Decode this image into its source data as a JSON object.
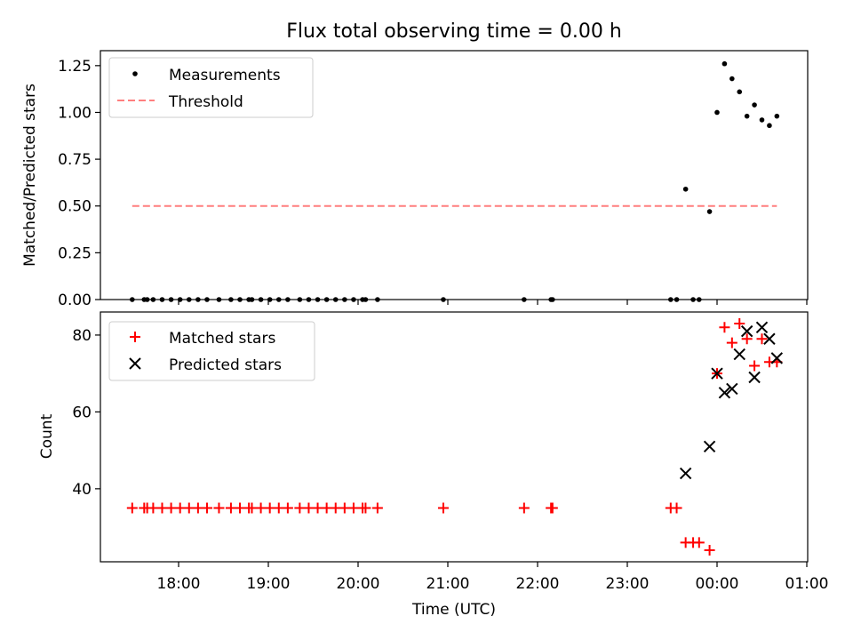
{
  "chart_data": [
    {
      "type": "scatter",
      "title": "Flux total observing time = 0.00 h",
      "xlabel": "",
      "ylabel": "Matched/Predicted stars",
      "ylim": [
        0,
        1.33
      ],
      "yticks": [
        0.0,
        0.25,
        0.5,
        0.75,
        1.0,
        1.25
      ],
      "ytick_labels": [
        "0.00",
        "0.25",
        "0.50",
        "0.75",
        "1.00",
        "1.25"
      ],
      "legend": [
        "Measurements",
        "Threshold"
      ],
      "legend_position": "top-left",
      "threshold": {
        "value": 0.5,
        "x_from": "17:29",
        "x_to": "00:40",
        "color": "#ff7f7f"
      },
      "measurements": [
        {
          "x": "17:29",
          "y": 0.0
        },
        {
          "x": "17:37",
          "y": 0.0
        },
        {
          "x": "17:39",
          "y": 0.0
        },
        {
          "x": "17:43",
          "y": 0.0
        },
        {
          "x": "17:49",
          "y": 0.0
        },
        {
          "x": "17:55",
          "y": 0.0
        },
        {
          "x": "18:01",
          "y": 0.0
        },
        {
          "x": "18:07",
          "y": 0.0
        },
        {
          "x": "18:13",
          "y": 0.0
        },
        {
          "x": "18:19",
          "y": 0.0
        },
        {
          "x": "18:27",
          "y": 0.0
        },
        {
          "x": "18:35",
          "y": 0.0
        },
        {
          "x": "18:41",
          "y": 0.0
        },
        {
          "x": "18:47",
          "y": 0.0
        },
        {
          "x": "18:49",
          "y": 0.0
        },
        {
          "x": "18:55",
          "y": 0.0
        },
        {
          "x": "19:01",
          "y": 0.0
        },
        {
          "x": "19:07",
          "y": 0.0
        },
        {
          "x": "19:13",
          "y": 0.0
        },
        {
          "x": "19:21",
          "y": 0.0
        },
        {
          "x": "19:27",
          "y": 0.0
        },
        {
          "x": "19:33",
          "y": 0.0
        },
        {
          "x": "19:39",
          "y": 0.0
        },
        {
          "x": "19:45",
          "y": 0.0
        },
        {
          "x": "19:51",
          "y": 0.0
        },
        {
          "x": "19:57",
          "y": 0.0
        },
        {
          "x": "20:03",
          "y": 0.0
        },
        {
          "x": "20:05",
          "y": 0.0
        },
        {
          "x": "20:13",
          "y": 0.0
        },
        {
          "x": "20:57",
          "y": 0.0
        },
        {
          "x": "21:51",
          "y": 0.0
        },
        {
          "x": "22:09",
          "y": 0.0
        },
        {
          "x": "22:10",
          "y": 0.0
        },
        {
          "x": "23:29",
          "y": 0.0
        },
        {
          "x": "23:33",
          "y": 0.0
        },
        {
          "x": "23:44",
          "y": 0.0
        },
        {
          "x": "23:48",
          "y": 0.0
        },
        {
          "x": "23:39",
          "y": 0.59
        },
        {
          "x": "23:55",
          "y": 0.47
        },
        {
          "x": "00:00",
          "y": 1.0
        },
        {
          "x": "00:05",
          "y": 1.26
        },
        {
          "x": "00:10",
          "y": 1.18
        },
        {
          "x": "00:15",
          "y": 1.11
        },
        {
          "x": "00:20",
          "y": 0.98
        },
        {
          "x": "00:25",
          "y": 1.04
        },
        {
          "x": "00:30",
          "y": 0.96
        },
        {
          "x": "00:35",
          "y": 0.93
        },
        {
          "x": "00:40",
          "y": 0.98
        }
      ]
    },
    {
      "type": "scatter",
      "title": "",
      "xlabel": "Time (UTC)",
      "ylabel": "Count",
      "ylim": [
        21,
        86
      ],
      "yticks": [
        40,
        60,
        80
      ],
      "ytick_labels": [
        "40",
        "60",
        "80"
      ],
      "legend": [
        "Matched stars",
        "Predicted stars"
      ],
      "legend_position": "top-left",
      "matched_color": "#ff0000",
      "predicted_color": "#000000",
      "matched": [
        {
          "x": "17:29",
          "y": 35
        },
        {
          "x": "17:37",
          "y": 35
        },
        {
          "x": "17:39",
          "y": 35
        },
        {
          "x": "17:43",
          "y": 35
        },
        {
          "x": "17:49",
          "y": 35
        },
        {
          "x": "17:55",
          "y": 35
        },
        {
          "x": "18:01",
          "y": 35
        },
        {
          "x": "18:07",
          "y": 35
        },
        {
          "x": "18:13",
          "y": 35
        },
        {
          "x": "18:19",
          "y": 35
        },
        {
          "x": "18:27",
          "y": 35
        },
        {
          "x": "18:35",
          "y": 35
        },
        {
          "x": "18:41",
          "y": 35
        },
        {
          "x": "18:47",
          "y": 35
        },
        {
          "x": "18:49",
          "y": 35
        },
        {
          "x": "18:55",
          "y": 35
        },
        {
          "x": "19:01",
          "y": 35
        },
        {
          "x": "19:07",
          "y": 35
        },
        {
          "x": "19:13",
          "y": 35
        },
        {
          "x": "19:21",
          "y": 35
        },
        {
          "x": "19:27",
          "y": 35
        },
        {
          "x": "19:33",
          "y": 35
        },
        {
          "x": "19:39",
          "y": 35
        },
        {
          "x": "19:45",
          "y": 35
        },
        {
          "x": "19:51",
          "y": 35
        },
        {
          "x": "19:57",
          "y": 35
        },
        {
          "x": "20:03",
          "y": 35
        },
        {
          "x": "20:05",
          "y": 35
        },
        {
          "x": "20:13",
          "y": 35
        },
        {
          "x": "20:57",
          "y": 35
        },
        {
          "x": "21:51",
          "y": 35
        },
        {
          "x": "22:09",
          "y": 35
        },
        {
          "x": "22:10",
          "y": 35
        },
        {
          "x": "23:29",
          "y": 35
        },
        {
          "x": "23:33",
          "y": 35
        },
        {
          "x": "23:39",
          "y": 26
        },
        {
          "x": "23:44",
          "y": 26
        },
        {
          "x": "23:48",
          "y": 26
        },
        {
          "x": "23:55",
          "y": 24
        },
        {
          "x": "00:00",
          "y": 70
        },
        {
          "x": "00:05",
          "y": 82
        },
        {
          "x": "00:10",
          "y": 78
        },
        {
          "x": "00:15",
          "y": 83
        },
        {
          "x": "00:20",
          "y": 79
        },
        {
          "x": "00:25",
          "y": 72
        },
        {
          "x": "00:30",
          "y": 79
        },
        {
          "x": "00:35",
          "y": 73
        },
        {
          "x": "00:40",
          "y": 73
        }
      ],
      "predicted": [
        {
          "x": "23:39",
          "y": 44
        },
        {
          "x": "23:55",
          "y": 51
        },
        {
          "x": "00:00",
          "y": 70
        },
        {
          "x": "00:05",
          "y": 65
        },
        {
          "x": "00:10",
          "y": 66
        },
        {
          "x": "00:15",
          "y": 75
        },
        {
          "x": "00:20",
          "y": 81
        },
        {
          "x": "00:25",
          "y": 69
        },
        {
          "x": "00:30",
          "y": 82
        },
        {
          "x": "00:35",
          "y": 79
        },
        {
          "x": "00:40",
          "y": 74
        }
      ],
      "xticks": [
        "18:00",
        "19:00",
        "20:00",
        "21:00",
        "22:00",
        "23:00",
        "00:00",
        "01:00"
      ]
    }
  ]
}
